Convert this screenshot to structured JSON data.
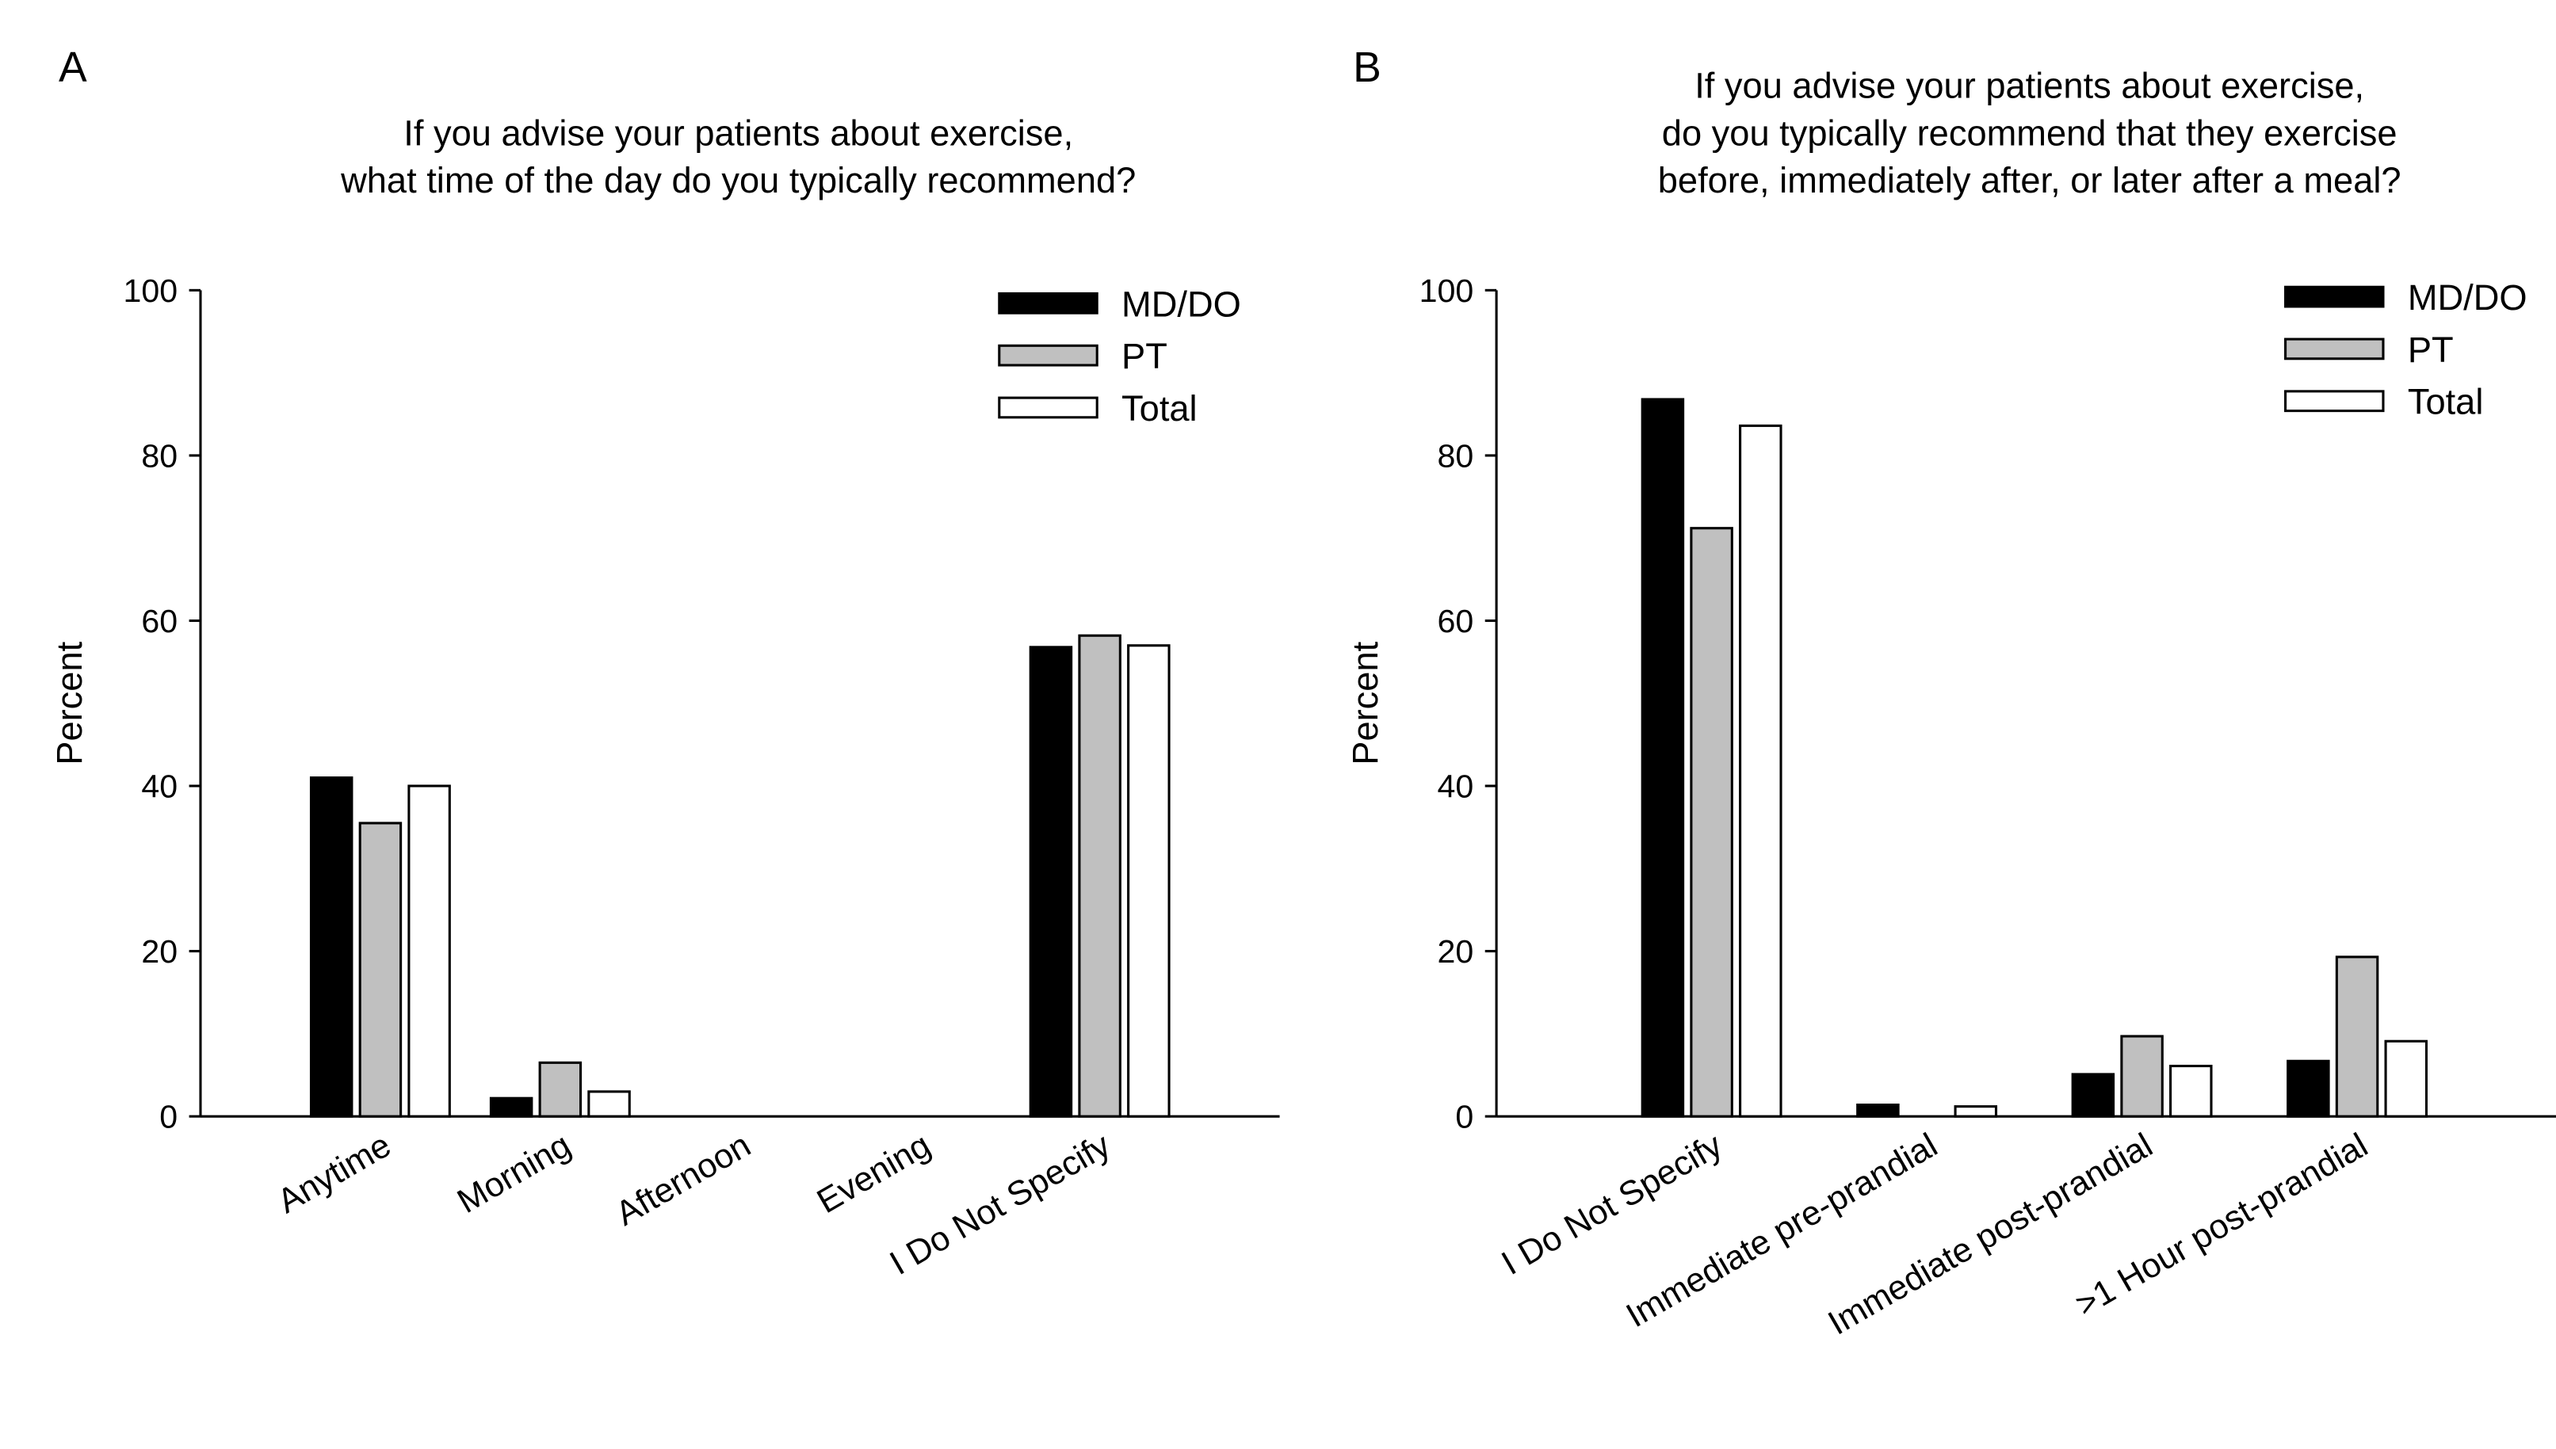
{
  "chart_data": [
    {
      "type": "bar",
      "label": "A",
      "title": [
        "If you advise your patients about exercise,",
        "what time of the day do you typically recommend?"
      ],
      "y_label": "Percent",
      "categories": [
        "Anytime",
        "Morning",
        "Afternoon",
        "Evening",
        "I Do Not Specify"
      ],
      "series": [
        {
          "name": "MD/DO",
          "color": "#000000",
          "values": [
            41.0,
            2.2,
            0,
            0,
            56.8
          ]
        },
        {
          "name": "PT",
          "color": "#c0c0c0",
          "values": [
            35.5,
            6.5,
            0,
            0,
            58.2
          ]
        },
        {
          "name": "Total",
          "color": "#ffffff",
          "values": [
            40.0,
            3.0,
            0,
            0,
            57.0
          ]
        }
      ],
      "ylim": [
        0,
        100
      ],
      "yticks": [
        0,
        20,
        40,
        60,
        80,
        100
      ],
      "legend": "upper right"
    },
    {
      "type": "bar",
      "label": "B",
      "title": [
        "If you advise your patients about exercise,",
        "do you typically recommend that they exercise",
        "before, immediately after, or later after a meal?"
      ],
      "y_label": "Percent",
      "categories": [
        "I Do Not Specify",
        "Immediate pre-prandial",
        "Immediate post-prandial",
        ">1 Hour post-prandial"
      ],
      "series": [
        {
          "name": "MD/DO",
          "color": "#000000",
          "values": [
            86.8,
            1.4,
            5.1,
            6.7
          ]
        },
        {
          "name": "PT",
          "color": "#c0c0c0",
          "values": [
            71.2,
            0,
            9.7,
            19.3
          ]
        },
        {
          "name": "Total",
          "color": "#ffffff",
          "values": [
            83.6,
            1.2,
            6.1,
            9.1
          ]
        }
      ],
      "ylim": [
        0,
        100
      ],
      "yticks": [
        0,
        20,
        40,
        60,
        80,
        100
      ],
      "legend": "upper right"
    }
  ]
}
